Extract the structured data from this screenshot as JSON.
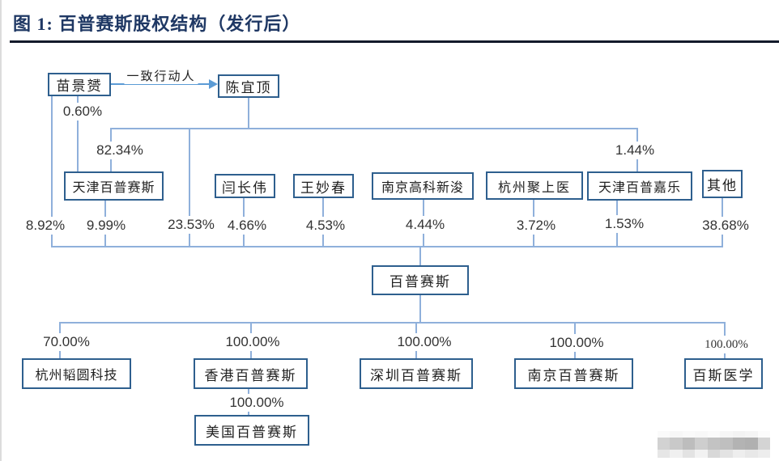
{
  "figure": {
    "title": "图 1: 百普赛斯股权结构（发行后）"
  },
  "relation_label": "一致行动人",
  "nodes": {
    "miao": "苗景赟",
    "chen": "陈宜顶",
    "tjbps": "天津百普赛斯",
    "yan": "闫长伟",
    "wang": "王妙春",
    "njgk": "南京高科新浚",
    "hzjsy": "杭州聚上医",
    "tjbpjl": "天津百普嘉乐",
    "qita": "其他",
    "bps": "百普赛斯",
    "hzty": "杭州韬圆科技",
    "hkbps": "香港百普赛斯",
    "szbps": "深圳百普赛斯",
    "njbps": "南京百普赛斯",
    "bsyx": "百斯医学",
    "usbps": "美国百普赛斯"
  },
  "percents": {
    "miao_tjbps": "0.60%",
    "chen_tjbps": "82.34%",
    "chen_tjbpjl": "1.44%",
    "miao_bps": "8.92%",
    "tjbps_bps": "9.99%",
    "chen_bps": "23.53%",
    "yan_bps": "4.66%",
    "wang_bps": "4.53%",
    "njgk_bps": "4.44%",
    "hzjsy_bps": "3.72%",
    "tjbpjl_bps": "1.53%",
    "qita_bps": "38.68%",
    "bps_hzty": "70.00%",
    "bps_hkbps": "100.00%",
    "bps_szbps": "100.00%",
    "bps_njbps": "100.00%",
    "bps_bsyx": "100.00%",
    "hkbps_usbps": "100.00%"
  },
  "edges": [
    {
      "from": "苗景赟",
      "to": "陈宜顶",
      "label": "一致行动人"
    },
    {
      "from": "苗景赟",
      "to": "天津百普赛斯",
      "stake": "0.60%"
    },
    {
      "from": "陈宜顶",
      "to": "天津百普赛斯",
      "stake": "82.34%"
    },
    {
      "from": "陈宜顶",
      "to": "百普赛斯",
      "stake": "23.53%"
    },
    {
      "from": "陈宜顶",
      "to": "天津百普嘉乐",
      "stake": "1.44%"
    },
    {
      "from": "苗景赟",
      "to": "百普赛斯",
      "stake": "8.92%"
    },
    {
      "from": "天津百普赛斯",
      "to": "百普赛斯",
      "stake": "9.99%"
    },
    {
      "from": "闫长伟",
      "to": "百普赛斯",
      "stake": "4.66%"
    },
    {
      "from": "王妙春",
      "to": "百普赛斯",
      "stake": "4.53%"
    },
    {
      "from": "南京高科新浚",
      "to": "百普赛斯",
      "stake": "4.44%"
    },
    {
      "from": "杭州聚上医",
      "to": "百普赛斯",
      "stake": "3.72%"
    },
    {
      "from": "天津百普嘉乐",
      "to": "百普赛斯",
      "stake": "1.53%"
    },
    {
      "from": "其他",
      "to": "百普赛斯",
      "stake": "38.68%"
    },
    {
      "from": "百普赛斯",
      "to": "杭州韬圆科技",
      "stake": "70.00%"
    },
    {
      "from": "百普赛斯",
      "to": "香港百普赛斯",
      "stake": "100.00%"
    },
    {
      "from": "百普赛斯",
      "to": "深圳百普赛斯",
      "stake": "100.00%"
    },
    {
      "from": "百普赛斯",
      "to": "南京百普赛斯",
      "stake": "100.00%"
    },
    {
      "from": "百普赛斯",
      "to": "百斯医学",
      "stake": "100.00%"
    },
    {
      "from": "香港百普赛斯",
      "to": "美国百普赛斯",
      "stake": "100.00%"
    }
  ],
  "colors": {
    "title": "#1F3864",
    "rule": "#131A2B",
    "box_border": "#2E5F8E",
    "connector": "#8FB0DB",
    "arrow": "#5B9BD5"
  },
  "watermark": {
    "rows": [
      {
        "height": 8,
        "cells": [
          "#fafafa",
          "#f7f7f7",
          "#fafafa",
          "#f8f8f8",
          "#fbfbfb",
          "#f6f6f6",
          "#f3f3f3",
          "#f5f5f5",
          "#fcfcfc"
        ]
      },
      {
        "height": 15,
        "cells": [
          "#d2d2d2",
          "#c9c9c9",
          "#bdbdbd",
          "#cecece",
          "#c3c3c3",
          "#bfbfbf",
          "#b3b3b3",
          "#b0b0b0",
          "#d4d4d4"
        ]
      },
      {
        "height": 10,
        "cells": [
          "#e6e6e6",
          "#f0f0f0",
          "#e3e3e3",
          "#f2f2f2",
          "#d8d8d8",
          "#e3e3e3",
          "#eeeeee",
          "#e8e8e8",
          "#ededed"
        ]
      }
    ]
  }
}
